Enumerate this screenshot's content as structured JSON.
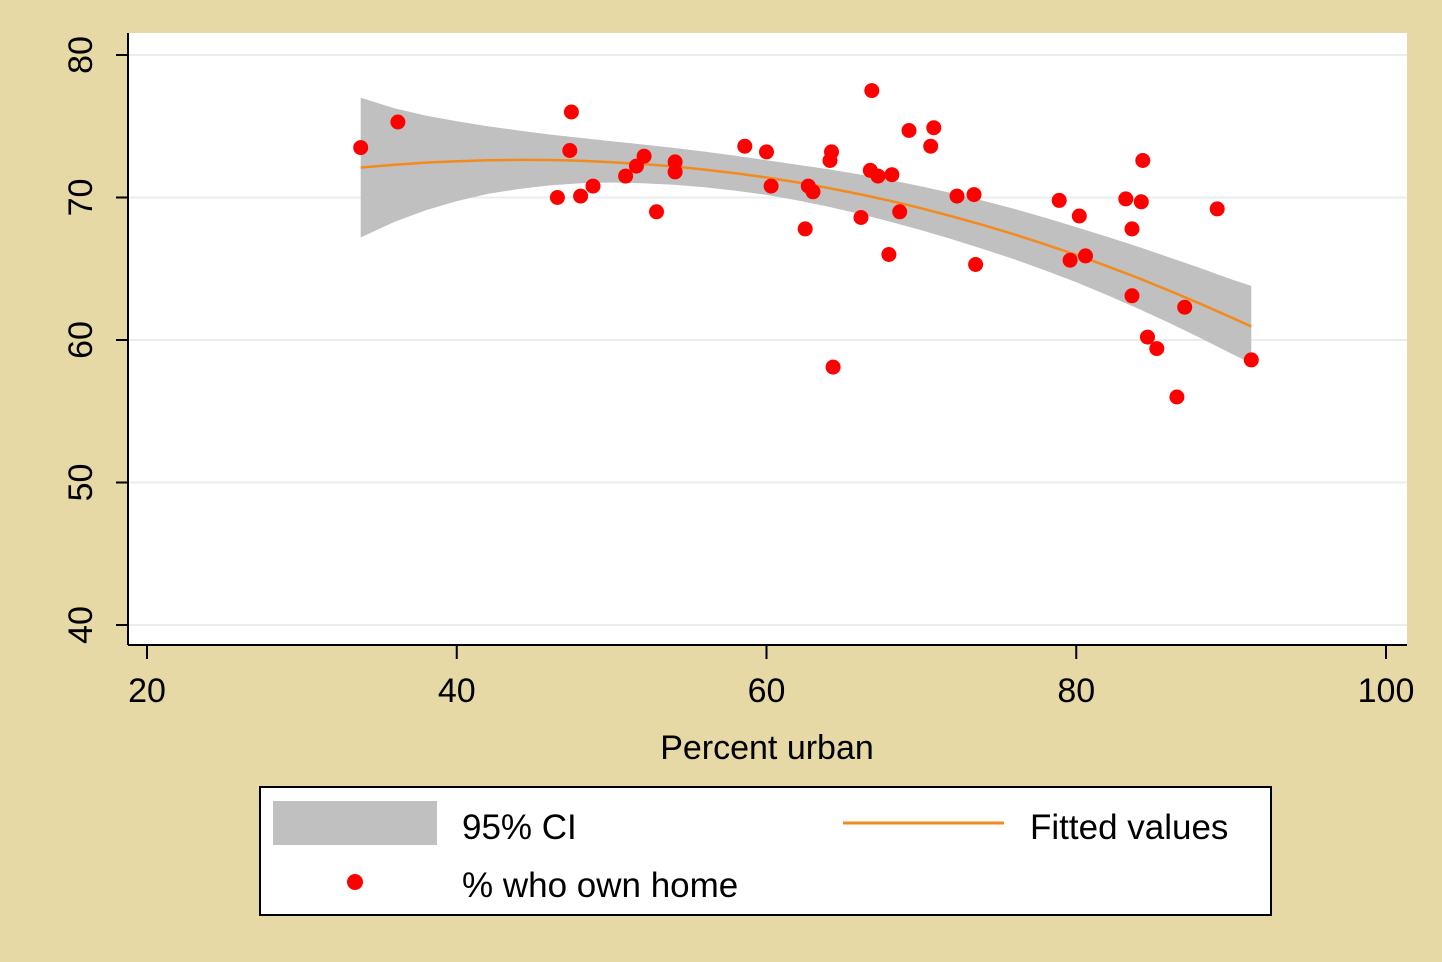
{
  "chart_data": {
    "type": "scatter",
    "title": "",
    "xlabel": "Percent urban",
    "ylabel": "",
    "xlim": [
      20,
      100
    ],
    "ylim": [
      40,
      80
    ],
    "xticks": [
      "20",
      "40",
      "60",
      "80",
      "100"
    ],
    "yticks": [
      "40",
      "50",
      "60",
      "70",
      "80"
    ],
    "grid": "horizontal",
    "legend_position": "bottom",
    "colors": {
      "outer_background": "#e6d9a5",
      "plot_background": "#ffffff",
      "grid": "#e8eef0",
      "ci_band": "#c0c0c0",
      "fit_line": "#f28a1e",
      "points": "#ff0000"
    },
    "legend": {
      "ci_label": "95% CI",
      "fit_label": "Fitted values",
      "scatter_label": "% who own home"
    },
    "series": [
      {
        "name": "% who own home",
        "kind": "scatter",
        "points": [
          [
            33.8,
            73.5
          ],
          [
            36.2,
            75.3
          ],
          [
            46.5,
            70.0
          ],
          [
            47.3,
            73.3
          ],
          [
            47.4,
            76.0
          ],
          [
            48.0,
            70.1
          ],
          [
            48.8,
            70.8
          ],
          [
            50.9,
            71.5
          ],
          [
            51.6,
            72.2
          ],
          [
            52.1,
            72.9
          ],
          [
            52.9,
            69.0
          ],
          [
            54.1,
            72.5
          ],
          [
            54.1,
            71.8
          ],
          [
            58.6,
            73.6
          ],
          [
            60.0,
            73.2
          ],
          [
            60.3,
            70.8
          ],
          [
            62.5,
            67.8
          ],
          [
            62.7,
            70.8
          ],
          [
            63.0,
            70.4
          ],
          [
            64.1,
            72.6
          ],
          [
            64.2,
            73.2
          ],
          [
            64.3,
            58.1
          ],
          [
            66.1,
            68.6
          ],
          [
            66.7,
            71.9
          ],
          [
            66.8,
            77.5
          ],
          [
            67.2,
            71.5
          ],
          [
            67.9,
            66.0
          ],
          [
            68.1,
            71.6
          ],
          [
            68.6,
            69.0
          ],
          [
            69.2,
            74.7
          ],
          [
            70.6,
            73.6
          ],
          [
            70.8,
            74.9
          ],
          [
            72.3,
            70.1
          ],
          [
            73.4,
            70.2
          ],
          [
            73.5,
            65.3
          ],
          [
            78.9,
            69.8
          ],
          [
            79.6,
            65.6
          ],
          [
            80.2,
            68.7
          ],
          [
            80.6,
            65.9
          ],
          [
            83.2,
            69.9
          ],
          [
            83.6,
            63.1
          ],
          [
            83.6,
            67.8
          ],
          [
            84.2,
            69.7
          ],
          [
            84.3,
            72.6
          ],
          [
            84.6,
            60.2
          ],
          [
            85.2,
            59.4
          ],
          [
            86.5,
            56.0
          ],
          [
            87.0,
            62.3
          ],
          [
            89.1,
            69.2
          ],
          [
            91.3,
            58.6
          ]
        ]
      },
      {
        "name": "Fitted values",
        "kind": "line",
        "x": [
          33.8,
          36,
          38,
          40,
          42,
          44,
          46,
          48,
          50,
          52,
          54,
          56,
          58,
          60,
          62,
          64,
          66,
          68,
          70,
          72,
          74,
          76,
          78,
          80,
          82,
          84,
          86,
          88,
          90,
          91.3
        ],
        "y": [
          72.1,
          72.3,
          72.45,
          72.55,
          72.62,
          72.64,
          72.63,
          72.58,
          72.48,
          72.35,
          72.18,
          71.96,
          71.7,
          71.4,
          71.06,
          70.67,
          70.24,
          69.76,
          69.24,
          68.67,
          68.06,
          67.41,
          66.71,
          65.97,
          65.18,
          64.35,
          63.47,
          62.55,
          61.59,
          60.95
        ]
      },
      {
        "name": "95% CI",
        "kind": "band",
        "x": [
          33.8,
          36,
          38,
          40,
          42,
          44,
          46,
          48,
          50,
          52,
          54,
          56,
          58,
          60,
          62,
          64,
          66,
          68,
          70,
          72,
          74,
          76,
          78,
          80,
          82,
          84,
          86,
          88,
          90,
          91.3
        ],
        "lower": [
          67.2,
          68.3,
          69.1,
          69.75,
          70.25,
          70.6,
          70.85,
          71.0,
          71.05,
          71.0,
          70.9,
          70.72,
          70.48,
          70.18,
          69.8,
          69.35,
          68.85,
          68.3,
          67.7,
          67.06,
          66.38,
          65.66,
          64.88,
          64.05,
          63.15,
          62.2,
          61.2,
          60.15,
          59.05,
          58.35
        ],
        "upper": [
          77.0,
          76.25,
          75.75,
          75.35,
          75.0,
          74.7,
          74.42,
          74.18,
          73.95,
          73.72,
          73.48,
          73.22,
          72.93,
          72.62,
          72.3,
          71.98,
          71.62,
          71.22,
          70.78,
          70.3,
          69.77,
          69.2,
          68.58,
          67.92,
          67.25,
          66.55,
          65.8,
          65.05,
          64.27,
          63.8
        ]
      }
    ]
  }
}
